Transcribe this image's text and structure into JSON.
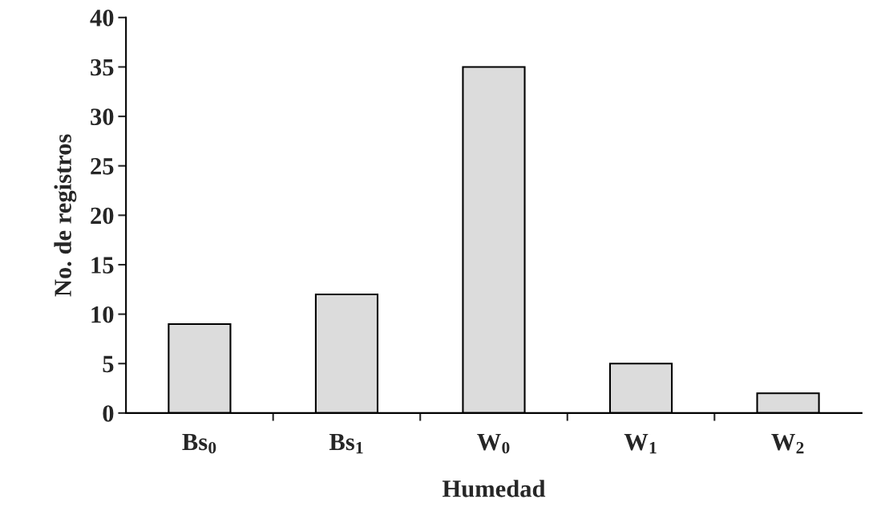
{
  "chart_data": {
    "type": "bar",
    "xlabel": "Humedad",
    "ylabel": "No. de registros",
    "categories": [
      "Bs$_{0}$",
      "Bs$_{1}$",
      "W$_{0}$",
      "W$_{1}$",
      "W$_{2}$"
    ],
    "values": [
      9,
      12,
      35,
      5,
      2
    ],
    "color": "#dcdcdc",
    "ylim": [
      0,
      40
    ],
    "yticks": [
      0,
      5,
      10,
      15,
      20,
      25,
      30,
      35,
      40
    ],
    "grid": false,
    "legend": false
  }
}
